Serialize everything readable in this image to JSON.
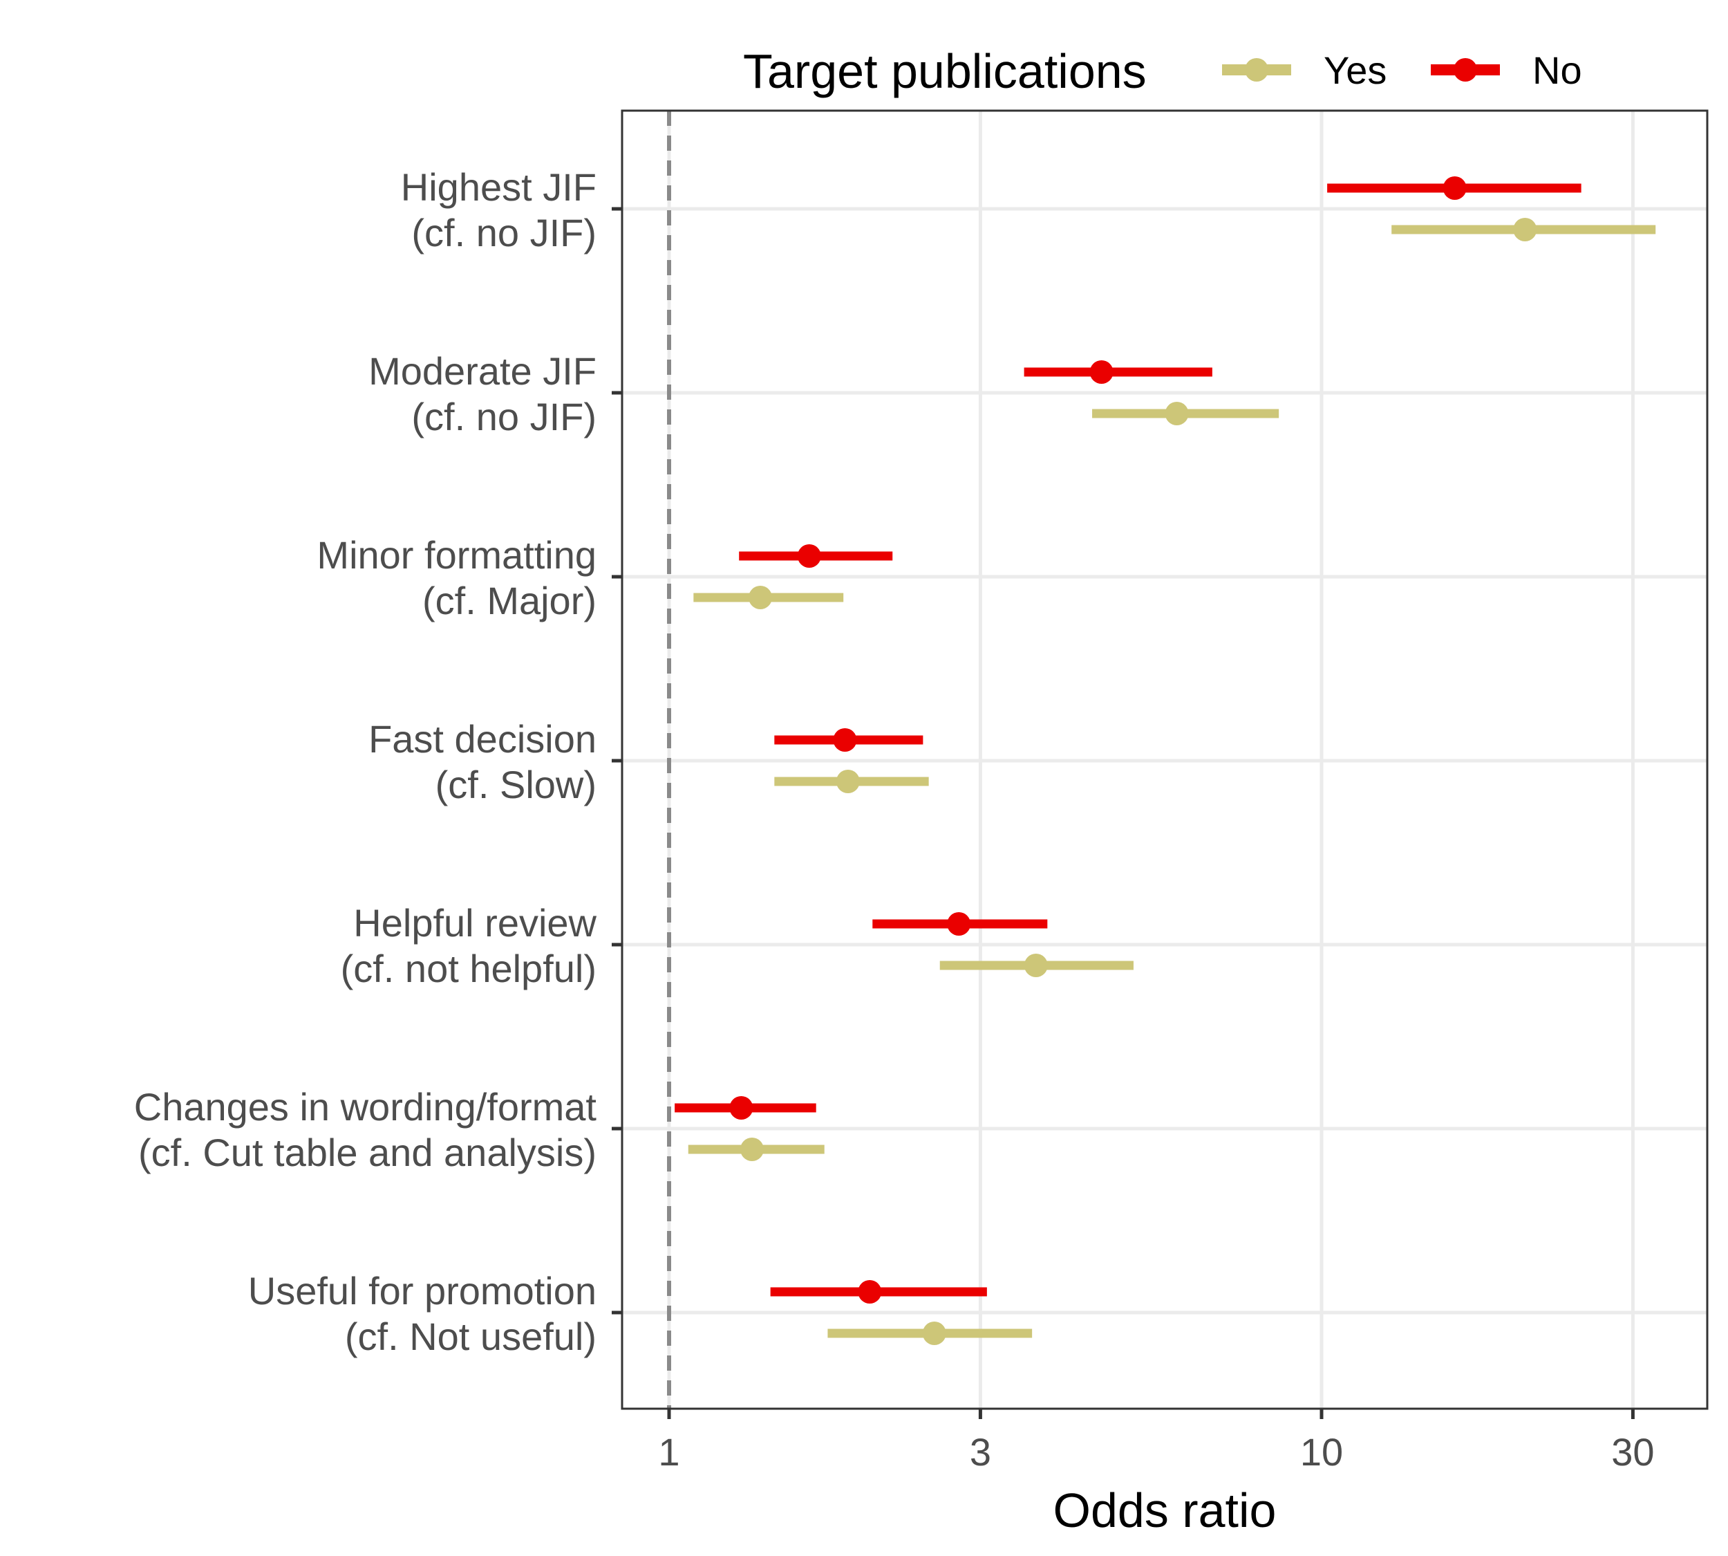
{
  "chart_data": {
    "type": "forest",
    "xlabel": "Odds ratio",
    "x_scale": "log",
    "xlim": [
      0.9,
      35
    ],
    "x_ticks": [
      1,
      3,
      10,
      30
    ],
    "x_tick_labels": [
      "1",
      "3",
      "10",
      "30"
    ],
    "reference_line": 1,
    "grid": true,
    "legend": {
      "title": "Target publications",
      "position": "top",
      "entries": [
        "Yes",
        "No"
      ]
    },
    "categories": [
      [
        "Highest JIF",
        "(cf. no JIF)"
      ],
      [
        "Moderate JIF",
        "(cf. no JIF)"
      ],
      [
        "Minor formatting",
        "(cf. Major)"
      ],
      [
        "Fast decision",
        "(cf. Slow)"
      ],
      [
        "Helpful review",
        "(cf. not helpful)"
      ],
      [
        "Changes in wording/format",
        "(cf. Cut table and analysis)"
      ],
      [
        "Useful for promotion",
        "(cf. Not useful)"
      ]
    ],
    "series": [
      {
        "name": "Yes",
        "color": "#cdc678",
        "estimates": [
          20.5,
          6.0,
          1.38,
          1.88,
          3.65,
          1.34,
          2.55
        ],
        "lower": [
          12.8,
          4.45,
          1.09,
          1.45,
          2.6,
          1.07,
          1.75
        ],
        "upper": [
          32.5,
          8.6,
          1.85,
          2.5,
          5.15,
          1.73,
          3.6
        ]
      },
      {
        "name": "No",
        "color": "#ea0000",
        "estimates": [
          16.0,
          4.6,
          1.64,
          1.86,
          2.78,
          1.29,
          2.03
        ],
        "lower": [
          10.2,
          3.5,
          1.28,
          1.45,
          2.05,
          1.02,
          1.43
        ],
        "upper": [
          25.0,
          6.8,
          2.2,
          2.45,
          3.8,
          1.68,
          3.07
        ]
      }
    ]
  }
}
